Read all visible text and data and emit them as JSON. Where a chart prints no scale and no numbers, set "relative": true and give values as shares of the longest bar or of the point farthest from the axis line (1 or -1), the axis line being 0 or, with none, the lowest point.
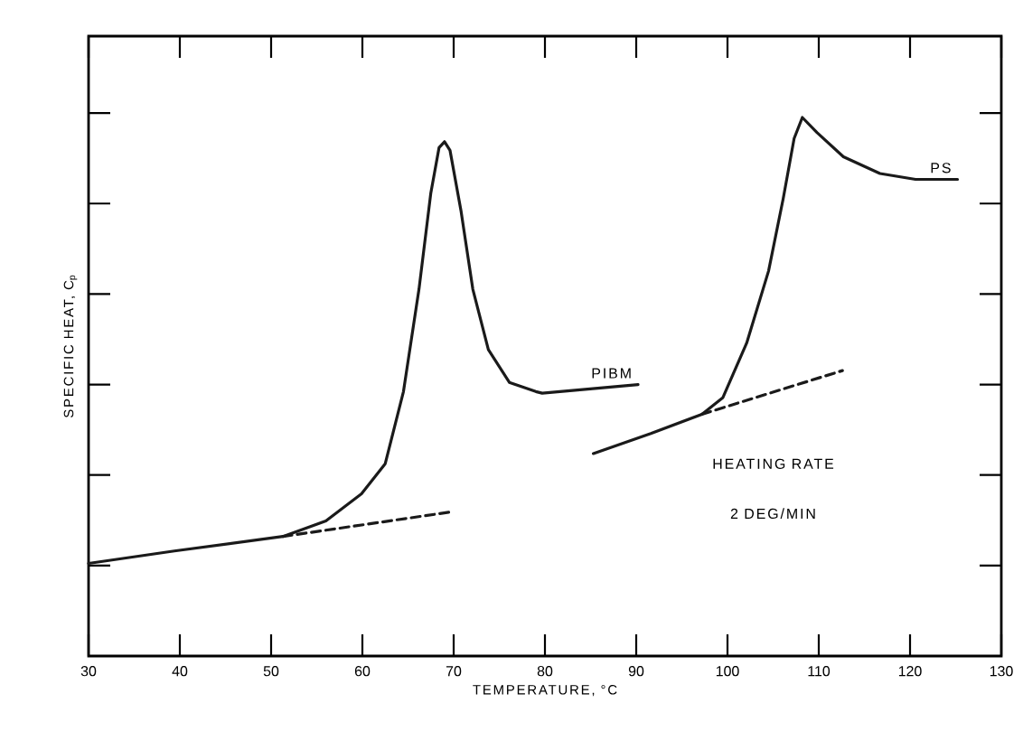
{
  "chart_data": {
    "type": "line",
    "relative": true,
    "xlabel": "TEMPERATURE, °C",
    "ylabel": "SPECIFIC HEAT, C$_{p}$",
    "xlim": [
      30,
      130
    ],
    "xticks": [
      30,
      40,
      50,
      60,
      70,
      80,
      90,
      100,
      110,
      120,
      130
    ],
    "grid": false,
    "legend": false,
    "marker": "none",
    "series": [
      {
        "name": "PIBM",
        "color": "#1a1a1a",
        "line_style": "solid",
        "x": [
          30,
          39.4,
          51.3,
          56,
          59.9,
          62.5,
          64.5,
          66.2,
          67.5,
          68.4,
          69.0,
          69.6,
          70.8,
          72.1,
          73.8,
          76.1,
          79.0,
          79.7,
          90.2
        ],
        "values": [
          0.172,
          0.195,
          0.222,
          0.251,
          0.301,
          0.357,
          0.491,
          0.681,
          0.86,
          0.944,
          0.955,
          0.939,
          0.827,
          0.681,
          0.569,
          0.508,
          0.491,
          0.488,
          0.504
        ]
      },
      {
        "color": "#1a1a1a",
        "line_style": "dashed",
        "x": [
          51.3,
          69.5
        ],
        "values": [
          0.222,
          0.267
        ]
      },
      {
        "name": "PS",
        "color": "#1a1a1a",
        "line_style": "solid",
        "x": [
          85.3,
          91.6,
          97.2,
          99.5,
          102.1,
          104.5,
          106.1,
          107.3,
          108.2,
          109.8,
          112.7,
          116.7,
          120.6,
          125.2
        ],
        "values": [
          0.376,
          0.413,
          0.449,
          0.48,
          0.581,
          0.715,
          0.849,
          0.961,
          1.0,
          0.972,
          0.927,
          0.896,
          0.885,
          0.885
        ]
      },
      {
        "color": "#1a1a1a",
        "line_style": "dashed",
        "x": [
          97.2,
          112.6
        ],
        "values": [
          0.449,
          0.53
        ]
      }
    ],
    "annotations": [
      "HEATING RATE",
      "2 DEG/MIN"
    ]
  }
}
